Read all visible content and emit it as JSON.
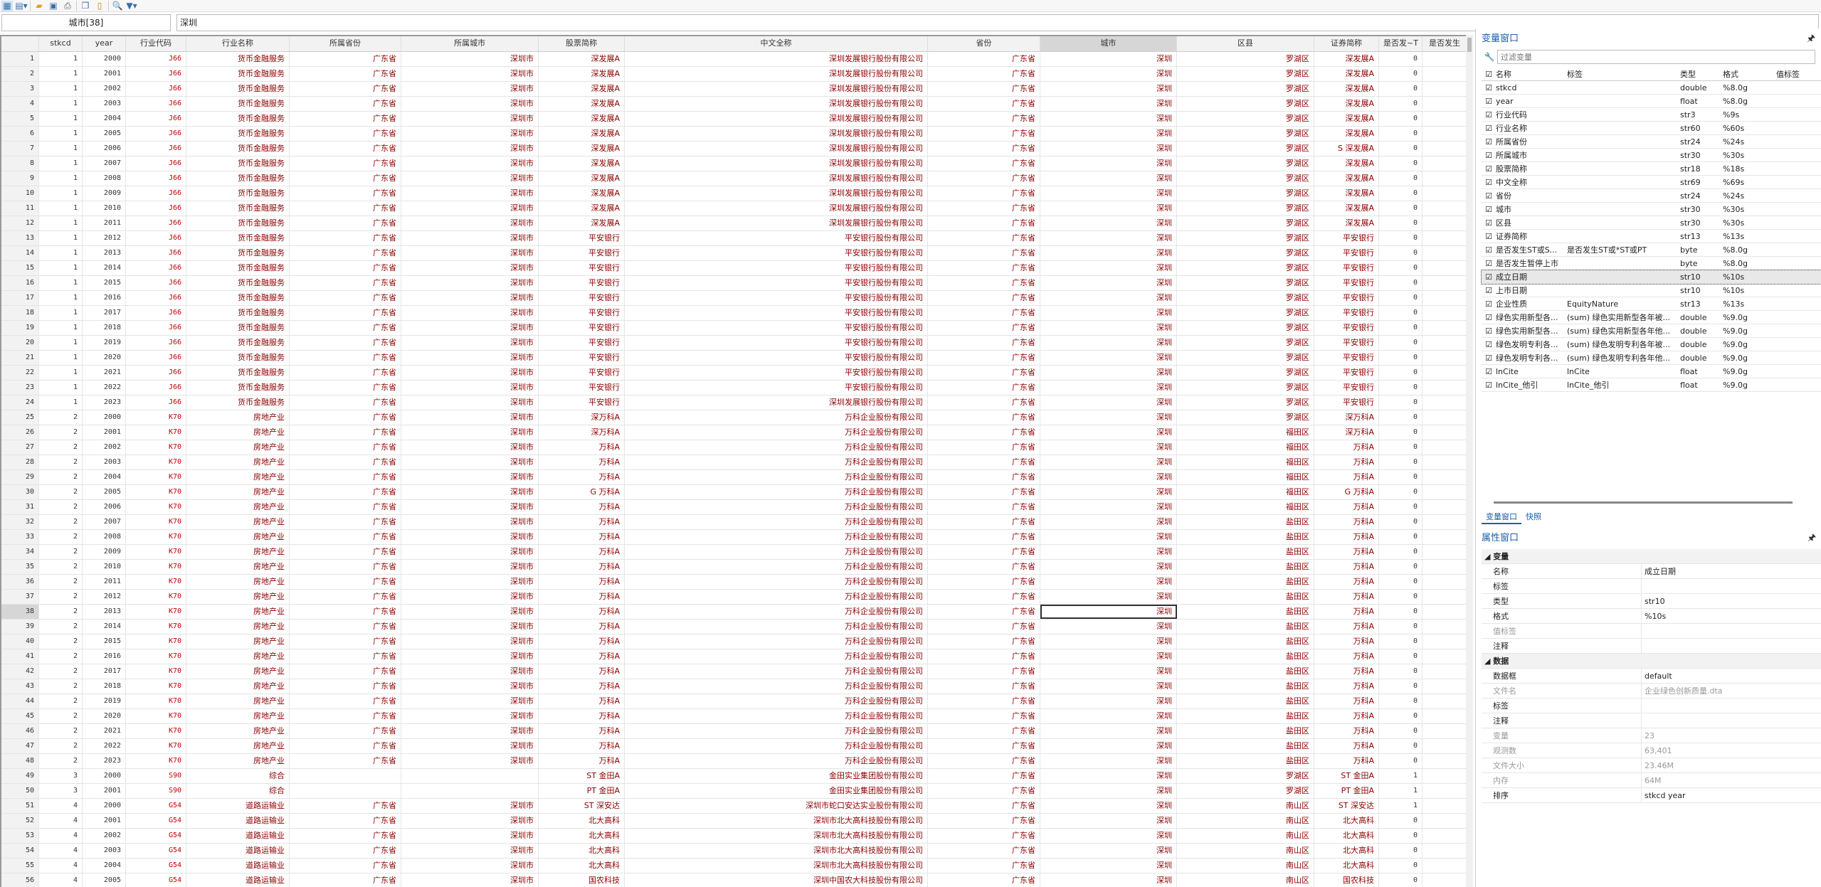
{
  "toolbar": {
    "icons": [
      "data-editor-icon",
      "view-options-icon",
      "open-folder-icon",
      "save-icon",
      "print-icon",
      "copy-icon",
      "paste-icon",
      "search-icon",
      "filter-icon"
    ]
  },
  "filterbar": {
    "varname": "城市[38]",
    "value": "深圳"
  },
  "grid": {
    "columns": [
      "",
      "stkcd",
      "year",
      "行业代码",
      "行业名称",
      "所属省份",
      "所属城市",
      "股票简称",
      "中文全称",
      "省份",
      "城市",
      "区县",
      "证券简称",
      "是否发~T",
      "是否发生"
    ],
    "selected_row": 38,
    "selected_column": "城市",
    "rows": [
      [
        1,
        1,
        2000,
        "J66",
        "货币金融服务",
        "广东省",
        "深圳市",
        "深发展A",
        "深圳发展银行股份有限公司",
        "广东省",
        "深圳",
        "罗湖区",
        "深发展A",
        "0",
        ""
      ],
      [
        2,
        1,
        2001,
        "J66",
        "货币金融服务",
        "广东省",
        "深圳市",
        "深发展A",
        "深圳发展银行股份有限公司",
        "广东省",
        "深圳",
        "罗湖区",
        "深发展A",
        "0",
        ""
      ],
      [
        3,
        1,
        2002,
        "J66",
        "货币金融服务",
        "广东省",
        "深圳市",
        "深发展A",
        "深圳发展银行股份有限公司",
        "广东省",
        "深圳",
        "罗湖区",
        "深发展A",
        "0",
        ""
      ],
      [
        4,
        1,
        2003,
        "J66",
        "货币金融服务",
        "广东省",
        "深圳市",
        "深发展A",
        "深圳发展银行股份有限公司",
        "广东省",
        "深圳",
        "罗湖区",
        "深发展A",
        "0",
        ""
      ],
      [
        5,
        1,
        2004,
        "J66",
        "货币金融服务",
        "广东省",
        "深圳市",
        "深发展A",
        "深圳发展银行股份有限公司",
        "广东省",
        "深圳",
        "罗湖区",
        "深发展A",
        "0",
        ""
      ],
      [
        6,
        1,
        2005,
        "J66",
        "货币金融服务",
        "广东省",
        "深圳市",
        "深发展A",
        "深圳发展银行股份有限公司",
        "广东省",
        "深圳",
        "罗湖区",
        "深发展A",
        "0",
        ""
      ],
      [
        7,
        1,
        2006,
        "J66",
        "货币金融服务",
        "广东省",
        "深圳市",
        "深发展A",
        "深圳发展银行股份有限公司",
        "广东省",
        "深圳",
        "罗湖区",
        "S 深发展A",
        "0",
        ""
      ],
      [
        8,
        1,
        2007,
        "J66",
        "货币金融服务",
        "广东省",
        "深圳市",
        "深发展A",
        "深圳发展银行股份有限公司",
        "广东省",
        "深圳",
        "罗湖区",
        "深发展A",
        "0",
        ""
      ],
      [
        9,
        1,
        2008,
        "J66",
        "货币金融服务",
        "广东省",
        "深圳市",
        "深发展A",
        "深圳发展银行股份有限公司",
        "广东省",
        "深圳",
        "罗湖区",
        "深发展A",
        "0",
        ""
      ],
      [
        10,
        1,
        2009,
        "J66",
        "货币金融服务",
        "广东省",
        "深圳市",
        "深发展A",
        "深圳发展银行股份有限公司",
        "广东省",
        "深圳",
        "罗湖区",
        "深发展A",
        "0",
        ""
      ],
      [
        11,
        1,
        2010,
        "J66",
        "货币金融服务",
        "广东省",
        "深圳市",
        "深发展A",
        "深圳发展银行股份有限公司",
        "广东省",
        "深圳",
        "罗湖区",
        "深发展A",
        "0",
        ""
      ],
      [
        12,
        1,
        2011,
        "J66",
        "货币金融服务",
        "广东省",
        "深圳市",
        "深发展A",
        "深圳发展银行股份有限公司",
        "广东省",
        "深圳",
        "罗湖区",
        "深发展A",
        "0",
        ""
      ],
      [
        13,
        1,
        2012,
        "J66",
        "货币金融服务",
        "广东省",
        "深圳市",
        "平安银行",
        "平安银行股份有限公司",
        "广东省",
        "深圳",
        "罗湖区",
        "平安银行",
        "0",
        ""
      ],
      [
        14,
        1,
        2013,
        "J66",
        "货币金融服务",
        "广东省",
        "深圳市",
        "平安银行",
        "平安银行股份有限公司",
        "广东省",
        "深圳",
        "罗湖区",
        "平安银行",
        "0",
        ""
      ],
      [
        15,
        1,
        2014,
        "J66",
        "货币金融服务",
        "广东省",
        "深圳市",
        "平安银行",
        "平安银行股份有限公司",
        "广东省",
        "深圳",
        "罗湖区",
        "平安银行",
        "0",
        ""
      ],
      [
        16,
        1,
        2015,
        "J66",
        "货币金融服务",
        "广东省",
        "深圳市",
        "平安银行",
        "平安银行股份有限公司",
        "广东省",
        "深圳",
        "罗湖区",
        "平安银行",
        "0",
        ""
      ],
      [
        17,
        1,
        2016,
        "J66",
        "货币金融服务",
        "广东省",
        "深圳市",
        "平安银行",
        "平安银行股份有限公司",
        "广东省",
        "深圳",
        "罗湖区",
        "平安银行",
        "0",
        ""
      ],
      [
        18,
        1,
        2017,
        "J66",
        "货币金融服务",
        "广东省",
        "深圳市",
        "平安银行",
        "平安银行股份有限公司",
        "广东省",
        "深圳",
        "罗湖区",
        "平安银行",
        "0",
        ""
      ],
      [
        19,
        1,
        2018,
        "J66",
        "货币金融服务",
        "广东省",
        "深圳市",
        "平安银行",
        "平安银行股份有限公司",
        "广东省",
        "深圳",
        "罗湖区",
        "平安银行",
        "0",
        ""
      ],
      [
        20,
        1,
        2019,
        "J66",
        "货币金融服务",
        "广东省",
        "深圳市",
        "平安银行",
        "平安银行股份有限公司",
        "广东省",
        "深圳",
        "罗湖区",
        "平安银行",
        "0",
        ""
      ],
      [
        21,
        1,
        2020,
        "J66",
        "货币金融服务",
        "广东省",
        "深圳市",
        "平安银行",
        "平安银行股份有限公司",
        "广东省",
        "深圳",
        "罗湖区",
        "平安银行",
        "0",
        ""
      ],
      [
        22,
        1,
        2021,
        "J66",
        "货币金融服务",
        "广东省",
        "深圳市",
        "平安银行",
        "平安银行股份有限公司",
        "广东省",
        "深圳",
        "罗湖区",
        "平安银行",
        "0",
        ""
      ],
      [
        23,
        1,
        2022,
        "J66",
        "货币金融服务",
        "广东省",
        "深圳市",
        "平安银行",
        "平安银行股份有限公司",
        "广东省",
        "深圳",
        "罗湖区",
        "平安银行",
        "0",
        ""
      ],
      [
        24,
        1,
        2023,
        "J66",
        "货币金融服务",
        "广东省",
        "深圳市",
        "平安银行",
        "深圳发展银行股份有限公司",
        "广东省",
        "深圳",
        "罗湖区",
        "平安银行",
        "0",
        ""
      ],
      [
        25,
        2,
        2000,
        "K70",
        "房地产业",
        "广东省",
        "深圳市",
        "深万科A",
        "万科企业股份有限公司",
        "广东省",
        "深圳",
        "罗湖区",
        "深万科A",
        "0",
        ""
      ],
      [
        26,
        2,
        2001,
        "K70",
        "房地产业",
        "广东省",
        "深圳市",
        "深万科A",
        "万科企业股份有限公司",
        "广东省",
        "深圳",
        "福田区",
        "深万科A",
        "0",
        ""
      ],
      [
        27,
        2,
        2002,
        "K70",
        "房地产业",
        "广东省",
        "深圳市",
        "万科A",
        "万科企业股份有限公司",
        "广东省",
        "深圳",
        "福田区",
        "万科A",
        "0",
        ""
      ],
      [
        28,
        2,
        2003,
        "K70",
        "房地产业",
        "广东省",
        "深圳市",
        "万科A",
        "万科企业股份有限公司",
        "广东省",
        "深圳",
        "福田区",
        "万科A",
        "0",
        ""
      ],
      [
        29,
        2,
        2004,
        "K70",
        "房地产业",
        "广东省",
        "深圳市",
        "万科A",
        "万科企业股份有限公司",
        "广东省",
        "深圳",
        "福田区",
        "万科A",
        "0",
        ""
      ],
      [
        30,
        2,
        2005,
        "K70",
        "房地产业",
        "广东省",
        "深圳市",
        "G 万科A",
        "万科企业股份有限公司",
        "广东省",
        "深圳",
        "福田区",
        "G 万科A",
        "0",
        ""
      ],
      [
        31,
        2,
        2006,
        "K70",
        "房地产业",
        "广东省",
        "深圳市",
        "万科A",
        "万科企业股份有限公司",
        "广东省",
        "深圳",
        "福田区",
        "万科A",
        "0",
        ""
      ],
      [
        32,
        2,
        2007,
        "K70",
        "房地产业",
        "广东省",
        "深圳市",
        "万科A",
        "万科企业股份有限公司",
        "广东省",
        "深圳",
        "盐田区",
        "万科A",
        "0",
        ""
      ],
      [
        33,
        2,
        2008,
        "K70",
        "房地产业",
        "广东省",
        "深圳市",
        "万科A",
        "万科企业股份有限公司",
        "广东省",
        "深圳",
        "盐田区",
        "万科A",
        "0",
        ""
      ],
      [
        34,
        2,
        2009,
        "K70",
        "房地产业",
        "广东省",
        "深圳市",
        "万科A",
        "万科企业股份有限公司",
        "广东省",
        "深圳",
        "盐田区",
        "万科A",
        "0",
        ""
      ],
      [
        35,
        2,
        2010,
        "K70",
        "房地产业",
        "广东省",
        "深圳市",
        "万科A",
        "万科企业股份有限公司",
        "广东省",
        "深圳",
        "盐田区",
        "万科A",
        "0",
        ""
      ],
      [
        36,
        2,
        2011,
        "K70",
        "房地产业",
        "广东省",
        "深圳市",
        "万科A",
        "万科企业股份有限公司",
        "广东省",
        "深圳",
        "盐田区",
        "万科A",
        "0",
        ""
      ],
      [
        37,
        2,
        2012,
        "K70",
        "房地产业",
        "广东省",
        "深圳市",
        "万科A",
        "万科企业股份有限公司",
        "广东省",
        "深圳",
        "盐田区",
        "万科A",
        "0",
        ""
      ],
      [
        38,
        2,
        2013,
        "K70",
        "房地产业",
        "广东省",
        "深圳市",
        "万科A",
        "万科企业股份有限公司",
        "广东省",
        "深圳",
        "盐田区",
        "万科A",
        "0",
        ""
      ],
      [
        39,
        2,
        2014,
        "K70",
        "房地产业",
        "广东省",
        "深圳市",
        "万科A",
        "万科企业股份有限公司",
        "广东省",
        "深圳",
        "盐田区",
        "万科A",
        "0",
        ""
      ],
      [
        40,
        2,
        2015,
        "K70",
        "房地产业",
        "广东省",
        "深圳市",
        "万科A",
        "万科企业股份有限公司",
        "广东省",
        "深圳",
        "盐田区",
        "万科A",
        "0",
        ""
      ],
      [
        41,
        2,
        2016,
        "K70",
        "房地产业",
        "广东省",
        "深圳市",
        "万科A",
        "万科企业股份有限公司",
        "广东省",
        "深圳",
        "盐田区",
        "万科A",
        "0",
        ""
      ],
      [
        42,
        2,
        2017,
        "K70",
        "房地产业",
        "广东省",
        "深圳市",
        "万科A",
        "万科企业股份有限公司",
        "广东省",
        "深圳",
        "盐田区",
        "万科A",
        "0",
        ""
      ],
      [
        43,
        2,
        2018,
        "K70",
        "房地产业",
        "广东省",
        "深圳市",
        "万科A",
        "万科企业股份有限公司",
        "广东省",
        "深圳",
        "盐田区",
        "万科A",
        "0",
        ""
      ],
      [
        44,
        2,
        2019,
        "K70",
        "房地产业",
        "广东省",
        "深圳市",
        "万科A",
        "万科企业股份有限公司",
        "广东省",
        "深圳",
        "盐田区",
        "万科A",
        "0",
        ""
      ],
      [
        45,
        2,
        2020,
        "K70",
        "房地产业",
        "广东省",
        "深圳市",
        "万科A",
        "万科企业股份有限公司",
        "广东省",
        "深圳",
        "盐田区",
        "万科A",
        "0",
        ""
      ],
      [
        46,
        2,
        2021,
        "K70",
        "房地产业",
        "广东省",
        "深圳市",
        "万科A",
        "万科企业股份有限公司",
        "广东省",
        "深圳",
        "盐田区",
        "万科A",
        "0",
        ""
      ],
      [
        47,
        2,
        2022,
        "K70",
        "房地产业",
        "广东省",
        "深圳市",
        "万科A",
        "万科企业股份有限公司",
        "广东省",
        "深圳",
        "盐田区",
        "万科A",
        "0",
        ""
      ],
      [
        48,
        2,
        2023,
        "K70",
        "房地产业",
        "广东省",
        "深圳市",
        "万科A",
        "万科企业股份有限公司",
        "广东省",
        "深圳",
        "盐田区",
        "万科A",
        "0",
        ""
      ],
      [
        49,
        3,
        2000,
        "S90",
        "综合",
        "",
        "",
        "ST 金田A",
        "金田实业集团股份有限公司",
        "广东省",
        "深圳",
        "罗湖区",
        "ST 金田A",
        "1",
        ""
      ],
      [
        50,
        3,
        2001,
        "S90",
        "综合",
        "",
        "",
        "PT 金田A",
        "金田实业集团股份有限公司",
        "广东省",
        "深圳",
        "罗湖区",
        "PT 金田A",
        "1",
        ""
      ],
      [
        51,
        4,
        2000,
        "G54",
        "道路运输业",
        "广东省",
        "深圳市",
        "ST 深安达",
        "深圳市蛇口安达实业股份有限公司",
        "广东省",
        "深圳",
        "南山区",
        "ST 深安达",
        "1",
        ""
      ],
      [
        52,
        4,
        2001,
        "G54",
        "道路运输业",
        "广东省",
        "深圳市",
        "北大高科",
        "深圳市北大高科技股份有限公司",
        "广东省",
        "深圳",
        "南山区",
        "北大高科",
        "0",
        ""
      ],
      [
        53,
        4,
        2002,
        "G54",
        "道路运输业",
        "广东省",
        "深圳市",
        "北大高科",
        "深圳市北大高科技股份有限公司",
        "广东省",
        "深圳",
        "南山区",
        "北大高科",
        "0",
        ""
      ],
      [
        54,
        4,
        2003,
        "G54",
        "道路运输业",
        "广东省",
        "深圳市",
        "北大高科",
        "深圳市北大高科技股份有限公司",
        "广东省",
        "深圳",
        "南山区",
        "北大高科",
        "0",
        ""
      ],
      [
        55,
        4,
        2004,
        "G54",
        "道路运输业",
        "广东省",
        "深圳市",
        "北大高科",
        "深圳市北大高科技股份有限公司",
        "广东省",
        "深圳",
        "南山区",
        "北大高科",
        "0",
        ""
      ],
      [
        56,
        4,
        2005,
        "G54",
        "道路运输业",
        "广东省",
        "深圳市",
        "国农科技",
        "深圳中国农大科技股份有限公司",
        "广东省",
        "深圳",
        "南山区",
        "国农科技",
        "0",
        ""
      ]
    ]
  },
  "variables": {
    "title": "变量窗口",
    "filter_placeholder": "过滤变量",
    "headers": [
      "名称",
      "标签",
      "类型",
      "格式",
      "值标签"
    ],
    "selected": "成立日期",
    "items": [
      [
        "stkcd",
        "",
        "double",
        "%8.0g"
      ],
      [
        "year",
        "",
        "float",
        "%8.0g"
      ],
      [
        "行业代码",
        "",
        "str3",
        "%9s"
      ],
      [
        "行业名称",
        "",
        "str60",
        "%60s"
      ],
      [
        "所属省份",
        "",
        "str24",
        "%24s"
      ],
      [
        "所属城市",
        "",
        "str30",
        "%30s"
      ],
      [
        "股票简称",
        "",
        "str18",
        "%18s"
      ],
      [
        "中文全称",
        "",
        "str69",
        "%69s"
      ],
      [
        "省份",
        "",
        "str24",
        "%24s"
      ],
      [
        "城市",
        "",
        "str30",
        "%30s"
      ],
      [
        "区县",
        "",
        "str30",
        "%30s"
      ],
      [
        "证券简称",
        "",
        "str13",
        "%13s"
      ],
      [
        "是否发生ST或S...",
        "是否发生ST或*ST或PT",
        "byte",
        "%8.0g"
      ],
      [
        "是否发生暂停上市",
        "",
        "byte",
        "%8.0g"
      ],
      [
        "成立日期",
        "",
        "str10",
        "%10s"
      ],
      [
        "上市日期",
        "",
        "str10",
        "%10s"
      ],
      [
        "企业性质",
        "EquityNature",
        "str13",
        "%13s"
      ],
      [
        "绿色实用新型各...",
        "(sum) 绿色实用新型各年被...",
        "double",
        "%9.0g"
      ],
      [
        "绿色实用新型各...",
        "(sum) 绿色实用新型各年他...",
        "double",
        "%9.0g"
      ],
      [
        "绿色发明专利各...",
        "(sum) 绿色发明专利各年被...",
        "double",
        "%9.0g"
      ],
      [
        "绿色发明专利各...",
        "(sum) 绿色发明专利各年他...",
        "double",
        "%9.0g"
      ],
      [
        "lnCite",
        "lnCite",
        "float",
        "%9.0g"
      ],
      [
        "lnCite_他引",
        "lnCite_他引",
        "float",
        "%9.0g"
      ]
    ]
  },
  "tabs": [
    "变量窗口",
    "快照"
  ],
  "properties": {
    "title": "属性窗口",
    "rows": [
      {
        "section": true,
        "k": "变量",
        "v": ""
      },
      {
        "k": "名称",
        "v": "成立日期"
      },
      {
        "k": "标签",
        "v": ""
      },
      {
        "k": "类型",
        "v": "str10"
      },
      {
        "k": "格式",
        "v": "%10s"
      },
      {
        "k": "值标签",
        "v": "",
        "dim": true
      },
      {
        "k": "注释",
        "v": ""
      },
      {
        "section": true,
        "k": "数据",
        "v": ""
      },
      {
        "k": "数据框",
        "v": "default"
      },
      {
        "k": "文件名",
        "v": "企业绿色创新质量.dta",
        "dim": true
      },
      {
        "k": "标签",
        "v": ""
      },
      {
        "k": "注释",
        "v": ""
      },
      {
        "k": "变量",
        "v": "23",
        "dim": true
      },
      {
        "k": "观测数",
        "v": "63,401",
        "dim": true
      },
      {
        "k": "文件大小",
        "v": "23.46M",
        "dim": true
      },
      {
        "k": "内存",
        "v": "64M",
        "dim": true
      },
      {
        "k": "排序",
        "v": "stkcd year"
      }
    ]
  }
}
